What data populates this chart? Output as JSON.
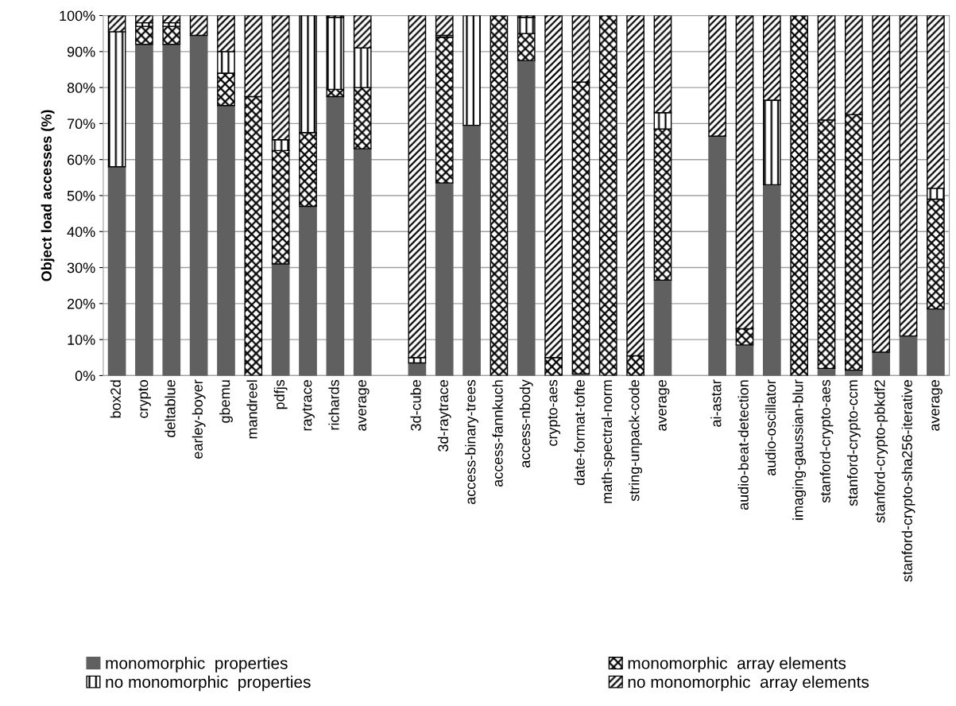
{
  "chart_data": {
    "type": "bar",
    "stacked": true,
    "ylabel": "Object load accesses (%)",
    "categories": [
      "box2d",
      "crypto",
      "deltablue",
      "earley-boyer",
      "gbemu",
      "mandreel",
      "pdfjs",
      "raytrace",
      "richards",
      "average",
      null,
      "3d-cube",
      "3d-raytrace",
      "access-binary-trees",
      "access-fannkuch",
      "access-nbody",
      "crypto-aes",
      "date-format-tofte",
      "math-spectral-norm",
      "string-unpack-code",
      "average",
      null,
      "ai-astar",
      "audio-beat-detection",
      "audio-oscillator",
      "imaging-gaussian-blur",
      "stanford-crypto-aes",
      "stanford-crypto-ccm",
      "stanford-crypto-pbkdf2",
      "stanford-crypto-sha256-iterative",
      "average"
    ],
    "series": [
      {
        "name": "monomorphic  properties",
        "color": "#606060",
        "values": [
          58,
          92,
          92,
          94.5,
          75,
          0,
          31,
          47,
          77.5,
          63,
          null,
          3.5,
          53.5,
          69.5,
          0,
          87.5,
          0,
          0.5,
          0,
          0,
          26.5,
          null,
          66.5,
          8.5,
          53,
          0,
          2,
          1.5,
          6.5,
          11,
          18.5
        ]
      },
      {
        "name": "monomorphic  array elements",
        "color": "#000000",
        "values": [
          0,
          5,
          5,
          0,
          9,
          77.5,
          31.5,
          20.5,
          2,
          17,
          null,
          0,
          40.5,
          0,
          100,
          7.5,
          5,
          81,
          100,
          5.5,
          42,
          null,
          0,
          4.5,
          0,
          100,
          69,
          71,
          0,
          0,
          30.5
        ]
      },
      {
        "name": "no monomorphic  properties",
        "color": "#000000",
        "values": [
          37.5,
          1,
          1,
          0,
          6,
          0,
          3,
          32.5,
          20,
          11,
          null,
          1.5,
          0.5,
          30.5,
          0,
          4.5,
          0,
          0,
          0,
          0,
          4.5,
          null,
          0,
          0,
          23.5,
          0,
          0,
          0,
          0,
          0,
          3
        ]
      },
      {
        "name": "no monomorphic  array elements",
        "color": "#000000",
        "values": [
          4.5,
          2,
          2,
          5.5,
          10,
          22.5,
          34.5,
          0,
          0.5,
          9,
          null,
          95,
          5.5,
          0,
          0,
          0.5,
          95,
          18.5,
          0,
          94.5,
          27,
          null,
          33.5,
          87,
          23.5,
          0,
          29,
          27.5,
          93.5,
          89,
          48
        ]
      }
    ],
    "ylim": [
      0,
      100
    ],
    "yticks": [
      {
        "value": 0,
        "label": "0%"
      },
      {
        "value": 10,
        "label": "10%"
      },
      {
        "value": 20,
        "label": "20%"
      },
      {
        "value": 30,
        "label": "30%"
      },
      {
        "value": 40,
        "label": "40%"
      },
      {
        "value": 50,
        "label": "50%"
      },
      {
        "value": 60,
        "label": "60%"
      },
      {
        "value": 70,
        "label": "70%"
      },
      {
        "value": 80,
        "label": "80%"
      },
      {
        "value": 90,
        "label": "90%"
      },
      {
        "value": 100,
        "label": "100%"
      }
    ],
    "grid": "y",
    "legend": "bottom"
  }
}
